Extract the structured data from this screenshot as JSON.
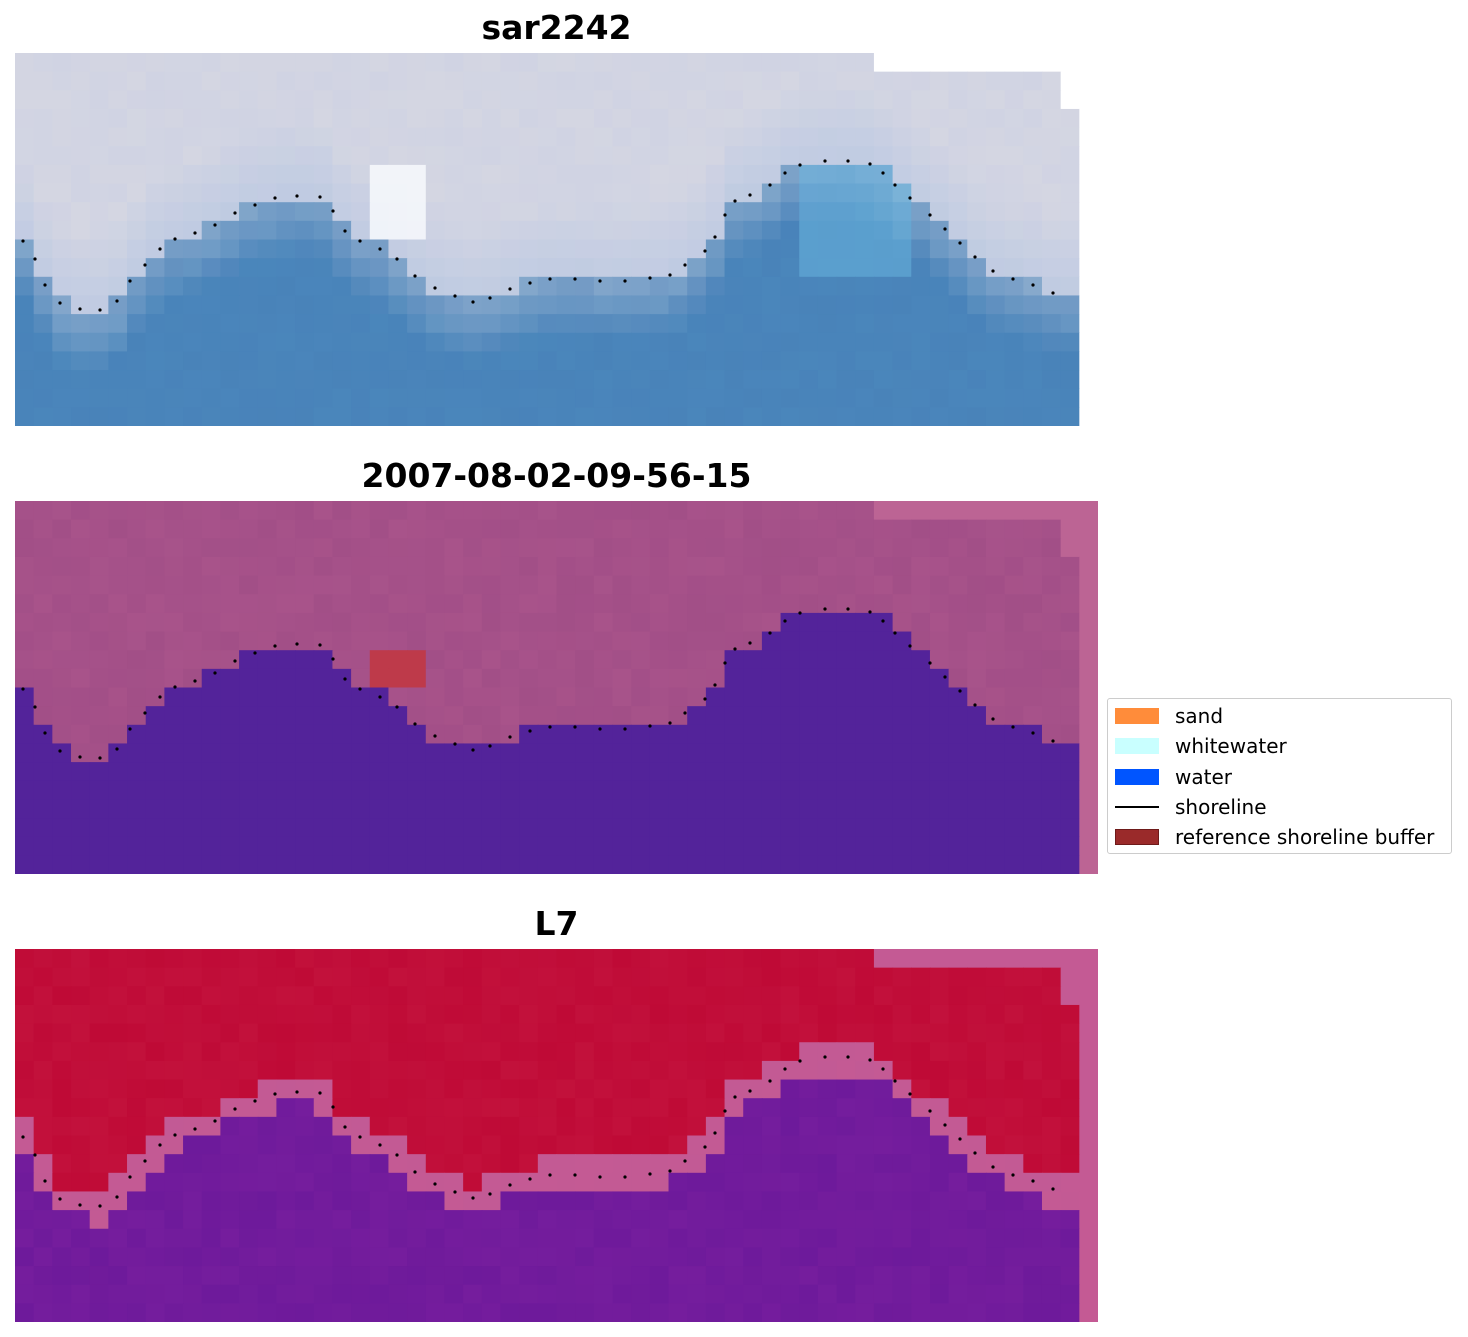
{
  "panels": [
    {
      "title": "sar2242",
      "style": "rgb"
    },
    {
      "title": "2007-08-02-09-56-15",
      "style": "classified"
    },
    {
      "title": "L7",
      "style": "index"
    }
  ],
  "legend": {
    "items": [
      {
        "label": "sand",
        "color": "#ff8c3a",
        "kind": "patch"
      },
      {
        "label": "whitewater",
        "color": "#c9ffff",
        "kind": "patch"
      },
      {
        "label": "water",
        "color": "#0055ff",
        "kind": "patch"
      },
      {
        "label": "shoreline",
        "color": "#000000",
        "kind": "line"
      },
      {
        "label": "reference shoreline buffer",
        "color": "#9a2a2a",
        "kind": "patch"
      }
    ]
  },
  "colors": {
    "sar_water": "#4a86bb",
    "sar_land": "#d4d6e2",
    "class_water": "#53239a",
    "class_land": "#a8538a",
    "class_nodata": "#bc6494",
    "index_land": "#bf0a36",
    "index_water": "#751d9d",
    "index_edge": "#c45a94",
    "buffer_red": "#be3a4a"
  }
}
